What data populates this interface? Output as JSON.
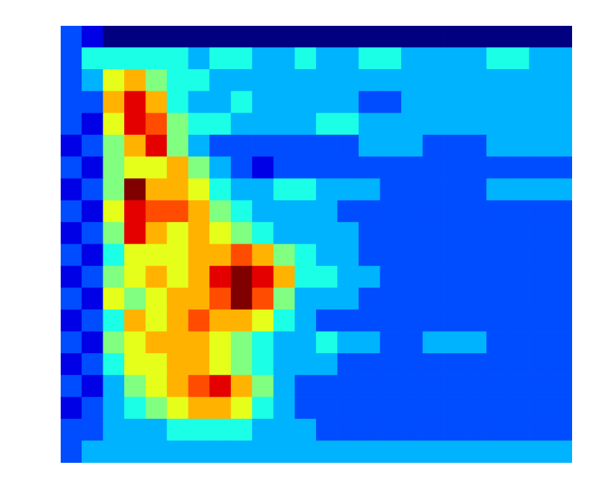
{
  "chart_data": {
    "type": "heatmap",
    "xlim": [
      0,
      24
    ],
    "ylim": [
      0,
      20
    ],
    "tick_labels": false,
    "color_range": [
      0,
      10
    ],
    "cells": [
      [
        2,
        1,
        0,
        0,
        0,
        0,
        0,
        0,
        0,
        0,
        0,
        0,
        0,
        0,
        0,
        0,
        0,
        0,
        0,
        0,
        0,
        0,
        0,
        0
      ],
      [
        2,
        4,
        4,
        4,
        4,
        4,
        3,
        4,
        4,
        3,
        3,
        4,
        3,
        3,
        4,
        4,
        3,
        3,
        3,
        3,
        4,
        4,
        3,
        3
      ],
      [
        2,
        3,
        6,
        7,
        5,
        4,
        4,
        3,
        3,
        3,
        3,
        3,
        3,
        3,
        3,
        3,
        3,
        3,
        3,
        3,
        3,
        3,
        3,
        3
      ],
      [
        2,
        2,
        7,
        9,
        7,
        4,
        3,
        3,
        4,
        3,
        3,
        3,
        3,
        3,
        2,
        2,
        3,
        3,
        3,
        3,
        3,
        3,
        3,
        3
      ],
      [
        2,
        1,
        6,
        9,
        8,
        5,
        4,
        4,
        3,
        3,
        3,
        3,
        4,
        4,
        3,
        3,
        3,
        3,
        3,
        3,
        3,
        3,
        3,
        3
      ],
      [
        1,
        2,
        5,
        7,
        9,
        5,
        3,
        2,
        2,
        2,
        2,
        2,
        2,
        2,
        3,
        3,
        3,
        2,
        2,
        2,
        3,
        3,
        3,
        3
      ],
      [
        2,
        1,
        5,
        6,
        6,
        7,
        5,
        3,
        2,
        1,
        2,
        2,
        2,
        2,
        2,
        2,
        2,
        2,
        2,
        2,
        2,
        2,
        2,
        2
      ],
      [
        1,
        2,
        5,
        10,
        7,
        7,
        6,
        4,
        3,
        3,
        4,
        4,
        3,
        3,
        3,
        2,
        2,
        2,
        2,
        2,
        3,
        3,
        3,
        3
      ],
      [
        2,
        1,
        6,
        9,
        8,
        8,
        7,
        5,
        4,
        3,
        3,
        3,
        3,
        2,
        2,
        2,
        2,
        2,
        2,
        2,
        2,
        2,
        2,
        2
      ],
      [
        1,
        2,
        5,
        9,
        7,
        6,
        7,
        6,
        5,
        4,
        3,
        3,
        3,
        3,
        2,
        2,
        2,
        2,
        2,
        2,
        2,
        2,
        2,
        2
      ],
      [
        2,
        1,
        4,
        6,
        6,
        6,
        7,
        7,
        8,
        7,
        5,
        4,
        3,
        3,
        2,
        2,
        2,
        2,
        2,
        2,
        2,
        2,
        2,
        2
      ],
      [
        1,
        2,
        5,
        6,
        7,
        6,
        7,
        9,
        10,
        9,
        7,
        4,
        4,
        3,
        3,
        2,
        2,
        2,
        2,
        2,
        2,
        2,
        2,
        2
      ],
      [
        2,
        1,
        6,
        5,
        6,
        7,
        7,
        8,
        10,
        8,
        5,
        3,
        3,
        3,
        2,
        2,
        2,
        2,
        2,
        2,
        2,
        2,
        2,
        2
      ],
      [
        1,
        2,
        4,
        7,
        6,
        7,
        8,
        7,
        7,
        6,
        4,
        3,
        2,
        2,
        2,
        2,
        2,
        2,
        2,
        2,
        2,
        2,
        2,
        2
      ],
      [
        2,
        1,
        5,
        6,
        7,
        7,
        7,
        6,
        5,
        4,
        3,
        3,
        4,
        3,
        3,
        2,
        2,
        3,
        3,
        3,
        2,
        2,
        2,
        2
      ],
      [
        1,
        2,
        4,
        6,
        6,
        7,
        7,
        6,
        5,
        4,
        3,
        3,
        3,
        2,
        2,
        2,
        2,
        2,
        2,
        2,
        2,
        2,
        2,
        2
      ],
      [
        2,
        1,
        3,
        5,
        6,
        7,
        8,
        9,
        7,
        5,
        3,
        2,
        2,
        2,
        2,
        2,
        2,
        2,
        2,
        2,
        2,
        2,
        2,
        2
      ],
      [
        1,
        2,
        3,
        4,
        5,
        6,
        7,
        7,
        6,
        4,
        3,
        2,
        2,
        2,
        2,
        2,
        2,
        2,
        2,
        2,
        2,
        2,
        2,
        2
      ],
      [
        2,
        2,
        3,
        3,
        3,
        4,
        4,
        4,
        4,
        3,
        3,
        3,
        2,
        2,
        2,
        2,
        2,
        2,
        2,
        2,
        2,
        2,
        2,
        2
      ],
      [
        2,
        3,
        3,
        3,
        3,
        3,
        3,
        3,
        3,
        3,
        3,
        3,
        3,
        3,
        3,
        3,
        3,
        3,
        3,
        3,
        3,
        3,
        3,
        3
      ]
    ]
  }
}
